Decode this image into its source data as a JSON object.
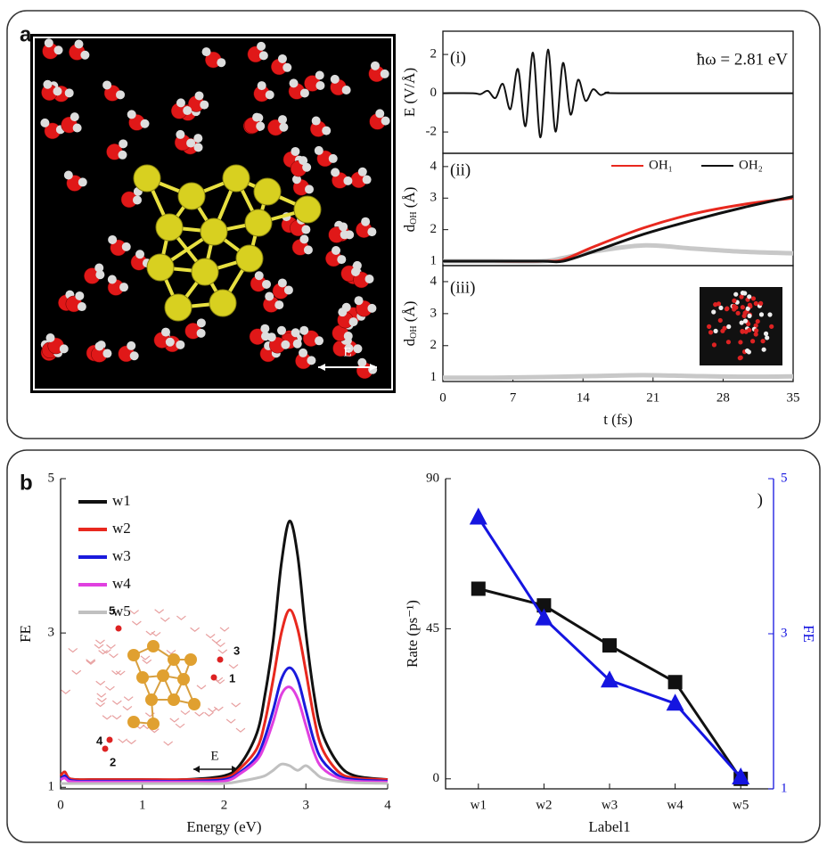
{
  "panel_labels": [
    "a",
    "b"
  ],
  "image_arrow_label": "E",
  "chart_data": [
    {
      "type": "line",
      "panel_tag": "(i)",
      "annotation": "ħω = 2.81 eV",
      "ylabel": "E (V/Å)",
      "xlim": [
        0,
        35
      ],
      "ylim": [
        -3.1,
        3.2
      ],
      "yticks": [
        -2,
        0,
        2
      ],
      "x": [
        0,
        3,
        3.75,
        4.5,
        5.25,
        6,
        6.75,
        7.5,
        8.25,
        9,
        9.75,
        10.5,
        11.25,
        12,
        12.75,
        13.5,
        14.25,
        15,
        15.75,
        16.5,
        18,
        35
      ],
      "series": [
        {
          "color": "#111111",
          "values": [
            0,
            0,
            -0.05,
            0.12,
            -0.25,
            0.48,
            -0.82,
            1.25,
            -1.7,
            2.09,
            -2.28,
            2.25,
            -1.98,
            1.56,
            -1.1,
            0.69,
            -0.39,
            0.2,
            -0.09,
            0.04,
            0,
            0
          ]
        }
      ]
    },
    {
      "type": "line",
      "panel_tag": "(ii)",
      "ylabel": "d",
      "ylabel_sub": "OH",
      "ylabel_unit": " (Å)",
      "xlim": [
        0,
        35
      ],
      "ylim": [
        0.86,
        4.42
      ],
      "yticks": [
        1,
        2,
        3,
        4
      ],
      "x": [
        0,
        5,
        10,
        12,
        15,
        20,
        25,
        30,
        35
      ],
      "series": [
        {
          "color": "#c8c8c8",
          "values": [
            1,
            1,
            1,
            1.1,
            1.3,
            1.5,
            1.4,
            1.3,
            1.25
          ]
        },
        {
          "name": "OH₁",
          "color": "#e8281e",
          "values": [
            1,
            1,
            1,
            1.05,
            1.45,
            2.05,
            2.5,
            2.8,
            3.0
          ]
        },
        {
          "name": "OH₂",
          "color": "#111111",
          "values": [
            1,
            1,
            1,
            1.0,
            1.3,
            1.85,
            2.3,
            2.7,
            3.05
          ]
        }
      ]
    },
    {
      "type": "line",
      "panel_tag": "(iii)",
      "ylabel": "d",
      "ylabel_sub": "OH",
      "ylabel_unit": " (Å)",
      "xlabel": "t (fs)",
      "xlim": [
        0,
        35
      ],
      "ylim": [
        0.88,
        4.5
      ],
      "yticks": [
        1,
        2,
        3,
        4
      ],
      "xticks": [
        0,
        7,
        14,
        21,
        28,
        35
      ],
      "x": [
        0,
        5,
        10,
        15,
        20,
        25,
        30,
        35
      ],
      "series": [
        {
          "color": "#c8c8c8",
          "values": [
            1,
            1,
            1.02,
            1.05,
            1.08,
            1.05,
            1.03,
            1.04
          ]
        }
      ]
    },
    {
      "type": "line",
      "ylabel": "FE",
      "xlabel": "Energy (eV)",
      "inset_labels": [
        "5",
        "3",
        "1",
        "4",
        "2"
      ],
      "arrow_label": "E",
      "xlim": [
        0,
        4
      ],
      "ylim": [
        0.98,
        5
      ],
      "yticks": [
        1,
        3,
        5
      ],
      "xticks": [
        0,
        1,
        2,
        3,
        4
      ],
      "x": [
        0,
        0.05,
        0.1,
        0.2,
        0.5,
        1,
        1.5,
        2,
        2.2,
        2.4,
        2.5,
        2.6,
        2.7,
        2.8,
        2.9,
        3.0,
        3.1,
        3.2,
        3.4,
        3.6,
        4
      ],
      "series": [
        {
          "name": "w1",
          "color": "#111111",
          "values": [
            1.15,
            1.2,
            1.12,
            1.1,
            1.1,
            1.1,
            1.1,
            1.15,
            1.3,
            1.7,
            2.2,
            2.9,
            3.9,
            4.45,
            4.0,
            3.0,
            2.2,
            1.7,
            1.3,
            1.15,
            1.1
          ]
        },
        {
          "name": "w2",
          "color": "#e8281e",
          "values": [
            1.15,
            1.2,
            1.12,
            1.1,
            1.1,
            1.1,
            1.1,
            1.12,
            1.25,
            1.5,
            1.85,
            2.4,
            3.0,
            3.3,
            3.05,
            2.5,
            1.9,
            1.5,
            1.2,
            1.12,
            1.1
          ]
        },
        {
          "name": "w3",
          "color": "#1a1adc",
          "values": [
            1.1,
            1.15,
            1.1,
            1.08,
            1.08,
            1.08,
            1.08,
            1.1,
            1.2,
            1.4,
            1.65,
            2.0,
            2.4,
            2.55,
            2.4,
            2.0,
            1.6,
            1.35,
            1.15,
            1.1,
            1.08
          ]
        },
        {
          "name": "w4",
          "color": "#e040e0",
          "values": [
            1.1,
            1.12,
            1.08,
            1.07,
            1.07,
            1.07,
            1.07,
            1.08,
            1.18,
            1.35,
            1.55,
            1.85,
            2.2,
            2.3,
            2.15,
            1.8,
            1.45,
            1.25,
            1.12,
            1.08,
            1.07
          ]
        },
        {
          "name": "w5",
          "color": "#c0c0c0",
          "values": [
            1.05,
            1.05,
            1.05,
            1.05,
            1.05,
            1.05,
            1.05,
            1.05,
            1.08,
            1.12,
            1.15,
            1.22,
            1.3,
            1.28,
            1.22,
            1.28,
            1.2,
            1.12,
            1.08,
            1.06,
            1.05
          ]
        }
      ]
    },
    {
      "type": "line",
      "ylabel": "Rate (ps⁻¹)",
      "y2label": "FE",
      "xlabel": "Label1",
      "annotation": ")",
      "categories": [
        "w1",
        "w2",
        "w3",
        "w4",
        "w5"
      ],
      "ylim": [
        -3,
        90
      ],
      "yticks": [
        0,
        45,
        90
      ],
      "y2lim": [
        1,
        5
      ],
      "y2ticks": [
        1,
        3,
        5
      ],
      "y2color": "#1515e0",
      "series": [
        {
          "color": "#111111",
          "marker": "square",
          "values": [
            57,
            52,
            40,
            29,
            0
          ]
        },
        {
          "color": "#1515e0",
          "marker": "triangle",
          "axis": "y2",
          "values": [
            4.5,
            3.2,
            2.4,
            2.1,
            1.15
          ]
        }
      ]
    }
  ]
}
